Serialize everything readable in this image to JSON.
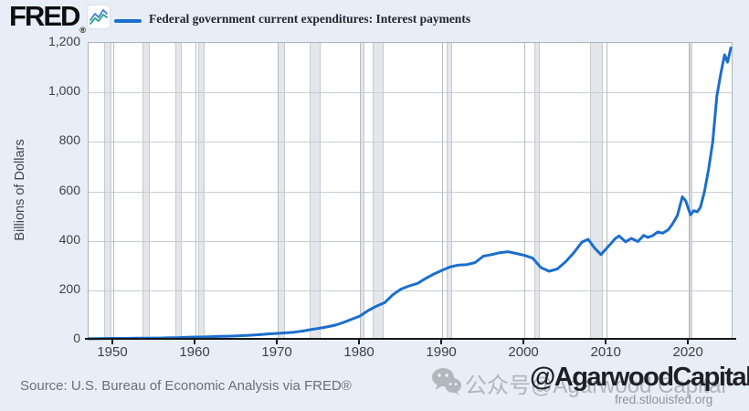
{
  "page": {
    "background": "#e8eef7"
  },
  "header": {
    "logo_text": "FRED",
    "logo_registered": "®",
    "legend_label": "Federal government current expenditures: Interest payments"
  },
  "axes": {
    "y_title": "Billions of Dollars",
    "y_tick_labels": [
      "0",
      "200",
      "400",
      "600",
      "800",
      "1,000",
      "1,200"
    ],
    "x_tick_labels": [
      "1950",
      "1960",
      "1970",
      "1980",
      "1990",
      "2000",
      "2010",
      "2020"
    ]
  },
  "footer": {
    "source": "Source: U.S. Bureau of Economic Analysis via FRED®"
  },
  "watermark": {
    "wechat_text": "公众号@Agarwood Capital",
    "handle": "@AgarwoodCapital",
    "site": "fred.stlouisfed.org"
  },
  "colors": {
    "line": "#1c6ecd",
    "axis": "#15181c",
    "grid_horizontal": "#c9cdd3",
    "grid_vertical": "#b8bcc2",
    "recession_band_fill": "#e3e6ea",
    "recession_band_edge": "#c6cacf",
    "plot_background": "#ffffff",
    "page_background": "#e8eef7",
    "logo_icon_blue": "#4080d0",
    "logo_icon_teal": "#2aa08e",
    "watermark_gray": "#a5aab1",
    "watermark_dark": "#1f2026"
  },
  "chart_data": {
    "type": "line",
    "title": "Federal government current expenditures: Interest payments",
    "xlabel": "",
    "ylabel": "Billions of Dollars",
    "unit": "billions of dollars",
    "xlim": [
      1947,
      2025.2
    ],
    "ylim": [
      0,
      1200
    ],
    "x_ticks": [
      1950,
      1960,
      1970,
      1980,
      1990,
      2000,
      2010,
      2020
    ],
    "y_ticks": [
      0,
      200,
      400,
      600,
      800,
      1000,
      1200
    ],
    "grid": true,
    "legend_position": "top",
    "recession_bands": [
      [
        1948.9,
        1949.8
      ],
      [
        1953.5,
        1954.4
      ],
      [
        1957.6,
        1958.35
      ],
      [
        1960.3,
        1961.1
      ],
      [
        1969.95,
        1970.9
      ],
      [
        1973.85,
        1975.25
      ],
      [
        1980.0,
        1980.6
      ],
      [
        1981.55,
        1982.9
      ],
      [
        1990.55,
        1991.25
      ],
      [
        2001.2,
        2001.9
      ],
      [
        2007.95,
        2009.5
      ],
      [
        2020.1,
        2020.35
      ]
    ],
    "series": [
      {
        "name": "Federal government current expenditures: Interest payments",
        "color": "#1c6ecd",
        "points": [
          [
            1947,
            4
          ],
          [
            1948,
            4.5
          ],
          [
            1949,
            5
          ],
          [
            1950,
            5.5
          ],
          [
            1951,
            5.5
          ],
          [
            1952,
            6
          ],
          [
            1953,
            6.5
          ],
          [
            1954,
            6.5
          ],
          [
            1955,
            7
          ],
          [
            1956,
            7.5
          ],
          [
            1957,
            8.5
          ],
          [
            1958,
            9
          ],
          [
            1959,
            10
          ],
          [
            1960,
            11
          ],
          [
            1961,
            11.5
          ],
          [
            1962,
            12.5
          ],
          [
            1963,
            13.5
          ],
          [
            1964,
            14.5
          ],
          [
            1965,
            15.5
          ],
          [
            1966,
            17
          ],
          [
            1967,
            19
          ],
          [
            1968,
            21.5
          ],
          [
            1969,
            24
          ],
          [
            1970,
            26
          ],
          [
            1971,
            28
          ],
          [
            1972,
            30.5
          ],
          [
            1973,
            35
          ],
          [
            1974,
            41
          ],
          [
            1975,
            46
          ],
          [
            1976,
            52
          ],
          [
            1977,
            59
          ],
          [
            1978,
            70
          ],
          [
            1979,
            83
          ],
          [
            1980,
            96
          ],
          [
            1981,
            118
          ],
          [
            1982,
            136
          ],
          [
            1983,
            150
          ],
          [
            1984,
            182
          ],
          [
            1985,
            205
          ],
          [
            1986,
            218
          ],
          [
            1987,
            228
          ],
          [
            1988,
            248
          ],
          [
            1989,
            266
          ],
          [
            1990,
            281
          ],
          [
            1991,
            295
          ],
          [
            1992,
            302
          ],
          [
            1993,
            304
          ],
          [
            1994,
            312
          ],
          [
            1995,
            338
          ],
          [
            1996,
            344
          ],
          [
            1997,
            352
          ],
          [
            1998,
            356
          ],
          [
            1999,
            349
          ],
          [
            2000,
            341
          ],
          [
            2001,
            330
          ],
          [
            2002,
            292
          ],
          [
            2003,
            277
          ],
          [
            2004,
            286
          ],
          [
            2005,
            315
          ],
          [
            2006,
            352
          ],
          [
            2007,
            395
          ],
          [
            2007.75,
            406
          ],
          [
            2008.5,
            372
          ],
          [
            2009.3,
            344
          ],
          [
            2010,
            370
          ],
          [
            2010.5,
            388
          ],
          [
            2011,
            408
          ],
          [
            2011.5,
            420
          ],
          [
            2012.3,
            396
          ],
          [
            2013,
            410
          ],
          [
            2013.8,
            397
          ],
          [
            2014.5,
            422
          ],
          [
            2015,
            414
          ],
          [
            2015.6,
            421
          ],
          [
            2016.2,
            436
          ],
          [
            2016.8,
            431
          ],
          [
            2017.5,
            445
          ],
          [
            2018,
            468
          ],
          [
            2018.6,
            502
          ],
          [
            2019.2,
            578
          ],
          [
            2019.6,
            562
          ],
          [
            2020.2,
            505
          ],
          [
            2020.6,
            522
          ],
          [
            2021,
            517
          ],
          [
            2021.4,
            535
          ],
          [
            2021.9,
            600
          ],
          [
            2022.4,
            690
          ],
          [
            2022.9,
            800
          ],
          [
            2023.4,
            985
          ],
          [
            2023.9,
            1080
          ],
          [
            2024.35,
            1152
          ],
          [
            2024.7,
            1122
          ],
          [
            2025.1,
            1180
          ]
        ]
      }
    ]
  }
}
